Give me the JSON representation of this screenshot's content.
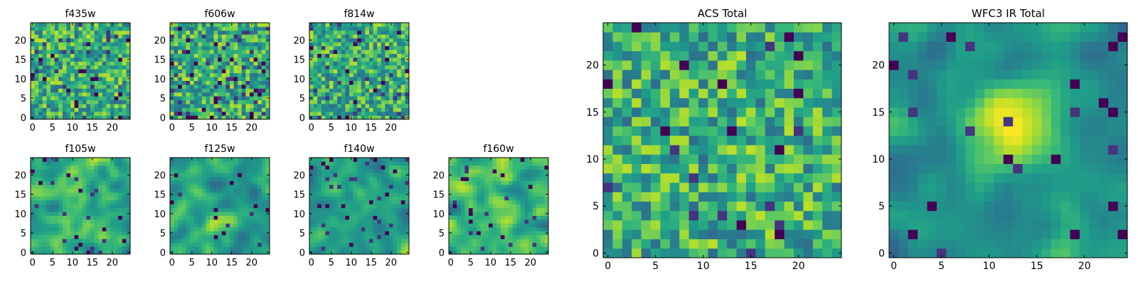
{
  "chart_data": [
    {
      "type": "heatmap",
      "title": "f435w",
      "grid_size": 25,
      "colormap": "viridis",
      "xticks": [
        0,
        5,
        10,
        15,
        20
      ],
      "yticks": [
        0,
        5,
        10,
        15,
        20
      ],
      "xlim": [
        0,
        24
      ],
      "ylim": [
        0,
        24
      ],
      "seed": 11,
      "texture": "fine",
      "dark_frac": 0.06,
      "blob": null
    },
    {
      "type": "heatmap",
      "title": "f606w",
      "grid_size": 25,
      "colormap": "viridis",
      "xticks": [
        0,
        5,
        10,
        15,
        20
      ],
      "yticks": [
        0,
        5,
        10,
        15,
        20
      ],
      "xlim": [
        0,
        24
      ],
      "ylim": [
        0,
        24
      ],
      "seed": 22,
      "texture": "fine",
      "dark_frac": 0.09,
      "blob": null
    },
    {
      "type": "heatmap",
      "title": "f814w",
      "grid_size": 25,
      "colormap": "viridis",
      "xticks": [
        0,
        5,
        10,
        15,
        20
      ],
      "yticks": [
        0,
        5,
        10,
        15,
        20
      ],
      "xlim": [
        0,
        24
      ],
      "ylim": [
        0,
        24
      ],
      "seed": 33,
      "texture": "fine",
      "dark_frac": 0.05,
      "blob": null
    },
    {
      "type": "heatmap",
      "title": "f105w",
      "grid_size": 25,
      "colormap": "viridis",
      "xticks": [
        0,
        5,
        10,
        15,
        20
      ],
      "yticks": [
        0,
        5,
        10,
        15,
        20
      ],
      "xlim": [
        0,
        24
      ],
      "ylim": [
        0,
        24
      ],
      "seed": 44,
      "texture": "smooth",
      "dark_frac": 0.04,
      "blob": null
    },
    {
      "type": "heatmap",
      "title": "f125w",
      "grid_size": 25,
      "colormap": "viridis",
      "xticks": [
        0,
        5,
        10,
        15,
        20
      ],
      "yticks": [
        0,
        5,
        10,
        15,
        20
      ],
      "xlim": [
        0,
        24
      ],
      "ylim": [
        0,
        24
      ],
      "seed": 55,
      "texture": "smooth",
      "dark_frac": 0.03,
      "blob": null
    },
    {
      "type": "heatmap",
      "title": "f140w",
      "grid_size": 25,
      "colormap": "viridis",
      "xticks": [
        0,
        5,
        10,
        15,
        20
      ],
      "yticks": [
        0,
        5,
        10,
        15,
        20
      ],
      "xlim": [
        0,
        24
      ],
      "ylim": [
        0,
        24
      ],
      "seed": 66,
      "texture": "smooth",
      "dark_frac": 0.05,
      "blob": null
    },
    {
      "type": "heatmap",
      "title": "f160w",
      "grid_size": 25,
      "colormap": "viridis",
      "xticks": [
        0,
        5,
        10,
        15,
        20
      ],
      "yticks": [
        0,
        5,
        10,
        15,
        20
      ],
      "xlim": [
        0,
        24
      ],
      "ylim": [
        0,
        24
      ],
      "seed": 77,
      "texture": "smooth",
      "dark_frac": 0.05,
      "blob": null
    },
    {
      "type": "heatmap",
      "title": "ACS Total",
      "grid_size": 25,
      "colormap": "viridis",
      "xticks": [
        0,
        5,
        10,
        15,
        20
      ],
      "yticks": [
        0,
        5,
        10,
        15,
        20
      ],
      "xlim": [
        0,
        24
      ],
      "ylim": [
        0,
        24
      ],
      "seed": 88,
      "texture": "fine",
      "dark_frac": 0.03,
      "blob": null
    },
    {
      "type": "heatmap",
      "title": "WFC3 IR Total",
      "grid_size": 25,
      "colormap": "viridis",
      "xticks": [
        0,
        5,
        10,
        15,
        20
      ],
      "yticks": [
        0,
        5,
        10,
        15,
        20
      ],
      "xlim": [
        0,
        24
      ],
      "ylim": [
        0,
        24
      ],
      "seed": 99,
      "texture": "smooth",
      "dark_frac": 0.03,
      "blob": {
        "x": 12.5,
        "y": 13,
        "sigma": 3.2,
        "amp": 0.9
      }
    }
  ]
}
